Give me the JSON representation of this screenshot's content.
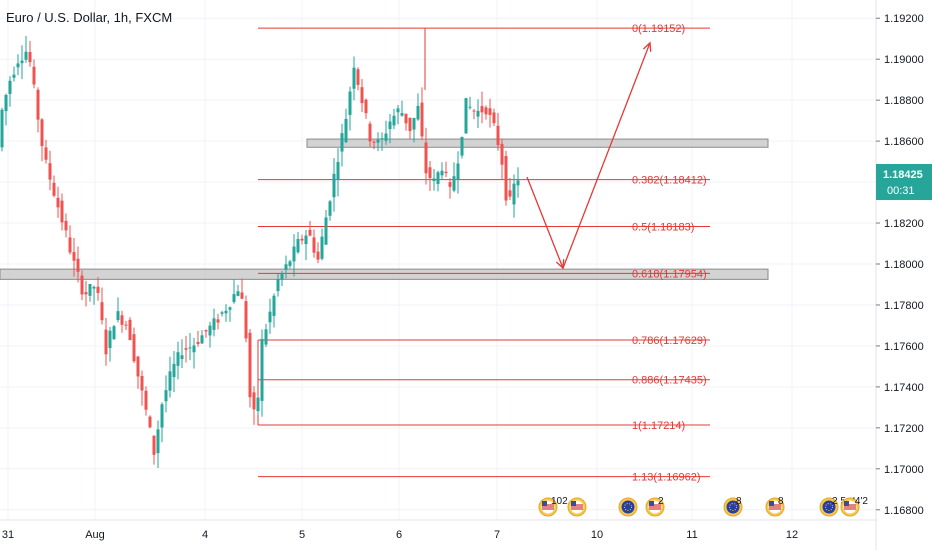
{
  "chart_data": {
    "type": "candlestick",
    "title": "Euro / U.S. Dollar, 1h, FXCM",
    "price_axis": {
      "ylim": [
        1.1675,
        1.1925
      ],
      "ticks": [
        "1.19200",
        "1.19000",
        "1.18800",
        "1.18600",
        "1.18400",
        "1.18200",
        "1.18000",
        "1.17800",
        "1.17600",
        "1.17400",
        "1.17200",
        "1.17000",
        "1.16800"
      ]
    },
    "current_price": {
      "value": 1.18425,
      "label": "1.18425",
      "countdown": "00:31"
    },
    "time_axis": {
      "ticks": [
        "31",
        "Aug",
        "4",
        "5",
        "6",
        "7",
        "10",
        "11",
        "12"
      ]
    },
    "fib_levels": [
      {
        "label": "0(1.19152)",
        "price": 1.19152
      },
      {
        "label": "0.382(1.18412)",
        "price": 1.18412
      },
      {
        "label": "0.5(1.18183)",
        "price": 1.18183
      },
      {
        "label": "0.618(1.17954)",
        "price": 1.17954
      },
      {
        "label": "0.786(1.17629)",
        "price": 1.17629
      },
      {
        "label": "0.886(1.17435)",
        "price": 1.17435
      },
      {
        "label": "1(1.17214)",
        "price": 1.17214
      },
      {
        "label": "1.13(1.16962)",
        "price": 1.16962
      }
    ],
    "zones": [
      {
        "price_top": 1.1861,
        "price_bottom": 1.1857
      },
      {
        "price_top": 1.17975,
        "price_bottom": 1.17925
      }
    ],
    "projection": {
      "points": [
        {
          "x": "7",
          "price": 1.18425
        },
        {
          "x": "9",
          "price": 1.1798
        },
        {
          "x": "10",
          "price": 1.1908
        }
      ]
    },
    "colors": {
      "bull": "#26a69a",
      "bear": "#ef5350",
      "fib": "#e53935",
      "zone": "#c4c4c4"
    },
    "event_badges": [
      {
        "flag": "us-flag-icon",
        "label": "102"
      },
      {
        "flag": "us-flag-icon",
        "label": ""
      },
      {
        "flag": "eu-flag-icon",
        "label": ""
      },
      {
        "flag": "us-flag-icon",
        "label": "2"
      },
      {
        "flag": "eu-flag-icon",
        "label": "8"
      },
      {
        "flag": "us-flag-icon",
        "label": "8"
      },
      {
        "flag": "eu-flag-icon",
        "label": "2 5"
      },
      {
        "flag": "us-flag-icon",
        "label": "'4'2"
      }
    ]
  }
}
